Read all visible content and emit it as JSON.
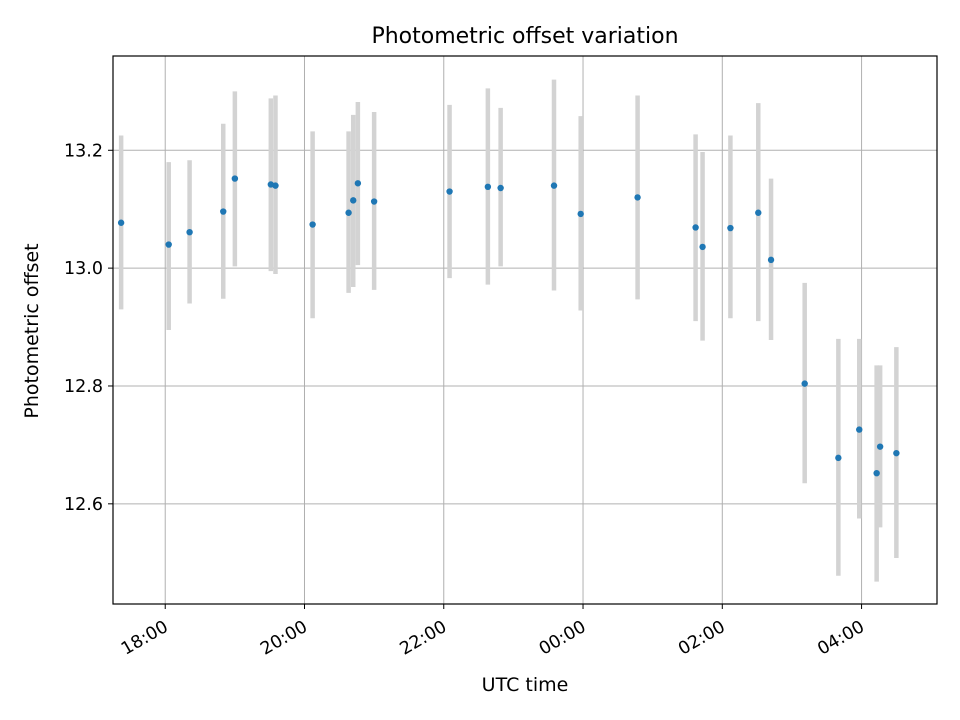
{
  "chart_data": {
    "type": "scatter",
    "title": "Photometric offset variation",
    "xlabel": "UTC time",
    "ylabel": "Photometric offset",
    "x_axis_kind": "time",
    "xlim": [
      "17:15",
      "05:05"
    ],
    "ylim": [
      12.43,
      13.36
    ],
    "grid": true,
    "x_ticks": [
      "18:00",
      "20:00",
      "22:00",
      "00:00",
      "02:00",
      "04:00"
    ],
    "y_ticks": [
      "12.6",
      "12.8",
      "13.0",
      "13.2"
    ],
    "colors": {
      "marker": "#1f77b4",
      "errorbar": "#d3d3d3",
      "grid": "#b0b0b0"
    },
    "points": [
      {
        "time": "17:22",
        "y": 13.077,
        "ylo": 12.93,
        "yhi": 13.225
      },
      {
        "time": "18:03",
        "y": 13.04,
        "ylo": 12.895,
        "yhi": 13.18
      },
      {
        "time": "18:21",
        "y": 13.061,
        "ylo": 12.94,
        "yhi": 13.183
      },
      {
        "time": "18:50",
        "y": 13.096,
        "ylo": 12.948,
        "yhi": 13.245
      },
      {
        "time": "19:00",
        "y": 13.152,
        "ylo": 13.003,
        "yhi": 13.3
      },
      {
        "time": "19:31",
        "y": 13.142,
        "ylo": 12.995,
        "yhi": 13.288
      },
      {
        "time": "19:35",
        "y": 13.14,
        "ylo": 12.99,
        "yhi": 13.293
      },
      {
        "time": "20:07",
        "y": 13.074,
        "ylo": 12.915,
        "yhi": 13.232
      },
      {
        "time": "20:38",
        "y": 13.094,
        "ylo": 12.958,
        "yhi": 13.232
      },
      {
        "time": "20:42",
        "y": 13.115,
        "ylo": 12.968,
        "yhi": 13.26
      },
      {
        "time": "20:46",
        "y": 13.144,
        "ylo": 13.005,
        "yhi": 13.282
      },
      {
        "time": "21:00",
        "y": 13.113,
        "ylo": 12.963,
        "yhi": 13.265
      },
      {
        "time": "22:05",
        "y": 13.13,
        "ylo": 12.983,
        "yhi": 13.277
      },
      {
        "time": "22:38",
        "y": 13.138,
        "ylo": 12.972,
        "yhi": 13.305
      },
      {
        "time": "22:49",
        "y": 13.136,
        "ylo": 13.003,
        "yhi": 13.272
      },
      {
        "time": "23:35",
        "y": 13.14,
        "ylo": 12.962,
        "yhi": 13.32
      },
      {
        "time": "23:58",
        "y": 13.092,
        "ylo": 12.928,
        "yhi": 13.258
      },
      {
        "time": "00:47",
        "y": 13.12,
        "ylo": 12.947,
        "yhi": 13.293
      },
      {
        "time": "01:37",
        "y": 13.069,
        "ylo": 12.91,
        "yhi": 13.227
      },
      {
        "time": "01:43",
        "y": 13.036,
        "ylo": 12.877,
        "yhi": 13.197
      },
      {
        "time": "02:07",
        "y": 13.068,
        "ylo": 12.915,
        "yhi": 13.225
      },
      {
        "time": "02:31",
        "y": 13.094,
        "ylo": 12.91,
        "yhi": 13.28
      },
      {
        "time": "02:42",
        "y": 13.014,
        "ylo": 12.878,
        "yhi": 13.152
      },
      {
        "time": "03:11",
        "y": 12.804,
        "ylo": 12.635,
        "yhi": 12.975
      },
      {
        "time": "03:40",
        "y": 12.678,
        "ylo": 12.478,
        "yhi": 12.88
      },
      {
        "time": "03:58",
        "y": 12.726,
        "ylo": 12.575,
        "yhi": 12.88
      },
      {
        "time": "04:13",
        "y": 12.652,
        "ylo": 12.468,
        "yhi": 12.835
      },
      {
        "time": "04:16",
        "y": 12.697,
        "ylo": 12.56,
        "yhi": 12.835
      },
      {
        "time": "04:30",
        "y": 12.686,
        "ylo": 12.508,
        "yhi": 12.866
      }
    ]
  }
}
